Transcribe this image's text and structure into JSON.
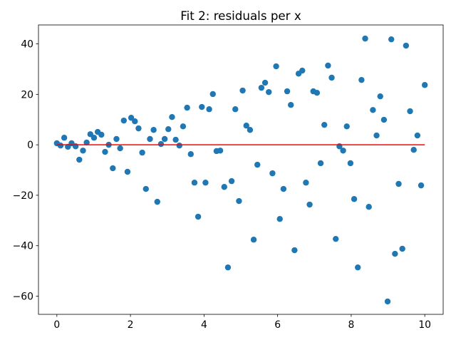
{
  "chart_data": {
    "type": "scatter",
    "title": "Fit 2: residuals per x",
    "xlim": [
      -0.5,
      10.5
    ],
    "ylim": [
      -67.2,
      47.5
    ],
    "xticks": [
      0,
      2,
      4,
      6,
      8,
      10
    ],
    "yticks": [
      {
        "value": -60,
        "label": "−60"
      },
      {
        "value": -40,
        "label": "−40"
      },
      {
        "value": -20,
        "label": "−20"
      },
      0,
      20,
      40
    ],
    "grid": false,
    "series": [
      {
        "type": "scatter",
        "color": "#1f77b4",
        "x": [
          0,
          0.1,
          0.2,
          0.3,
          0.4,
          0.51,
          0.61,
          0.71,
          0.81,
          0.91,
          1.01,
          1.11,
          1.21,
          1.31,
          1.41,
          1.52,
          1.62,
          1.72,
          1.82,
          1.92,
          2.02,
          2.12,
          2.22,
          2.32,
          2.42,
          2.53,
          2.63,
          2.73,
          2.83,
          2.93,
          3.03,
          3.13,
          3.23,
          3.33,
          3.43,
          3.54,
          3.64,
          3.74,
          3.84,
          3.94,
          4.04,
          4.14,
          4.24,
          4.34,
          4.44,
          4.55,
          4.65,
          4.75,
          4.85,
          4.95,
          5.05,
          5.15,
          5.25,
          5.35,
          5.45,
          5.56,
          5.66,
          5.76,
          5.86,
          5.96,
          6.06,
          6.16,
          6.26,
          6.36,
          6.46,
          6.57,
          6.67,
          6.77,
          6.87,
          6.97,
          7.07,
          7.17,
          7.27,
          7.37,
          7.47,
          7.58,
          7.68,
          7.78,
          7.88,
          7.98,
          8.08,
          8.18,
          8.28,
          8.38,
          8.48,
          8.59,
          8.69,
          8.79,
          8.89,
          8.99,
          9.09,
          9.19,
          9.29,
          9.39,
          9.49,
          9.6,
          9.7,
          9.8,
          9.9,
          10
        ],
        "values": [
          0.6,
          -0.3,
          2.8,
          -0.8,
          0.6,
          -0.6,
          -5.9,
          -2.3,
          0.9,
          4.2,
          2.8,
          5.1,
          4.0,
          -2.8,
          0,
          -9.3,
          2.3,
          -1.4,
          9.6,
          -10.7,
          10.7,
          9.3,
          6.5,
          -3.1,
          -17.5,
          2.3,
          5.9,
          -22.6,
          0.3,
          2.3,
          6.2,
          11.0,
          2.0,
          -0.3,
          7.3,
          14.7,
          -3.7,
          -15.0,
          -28.5,
          15.0,
          -15.0,
          14.1,
          20.1,
          -2.5,
          -2.3,
          -16.7,
          -48.6,
          -14.4,
          14.1,
          -22.3,
          21.5,
          7.6,
          5.9,
          -37.6,
          -7.9,
          22.6,
          24.6,
          20.9,
          -11.3,
          31.1,
          -29.4,
          -17.5,
          21.2,
          15.8,
          -41.8,
          28.2,
          29.4,
          -15.0,
          -23.7,
          21.2,
          20.6,
          -7.3,
          7.9,
          31.4,
          26.6,
          -37.3,
          -0.6,
          -2.3,
          7.3,
          -7.3,
          -21.5,
          -48.6,
          25.7,
          42.1,
          -24.6,
          13.8,
          3.7,
          19.2,
          9.9,
          -62.1,
          41.8,
          -43.2,
          -15.5,
          -41.2,
          39.3,
          13.3,
          -2.0,
          3.7,
          -16.1,
          23.7
        ]
      },
      {
        "type": "line",
        "color": "#ff0000",
        "x": [
          0,
          10
        ],
        "values": [
          0,
          0
        ]
      }
    ]
  }
}
